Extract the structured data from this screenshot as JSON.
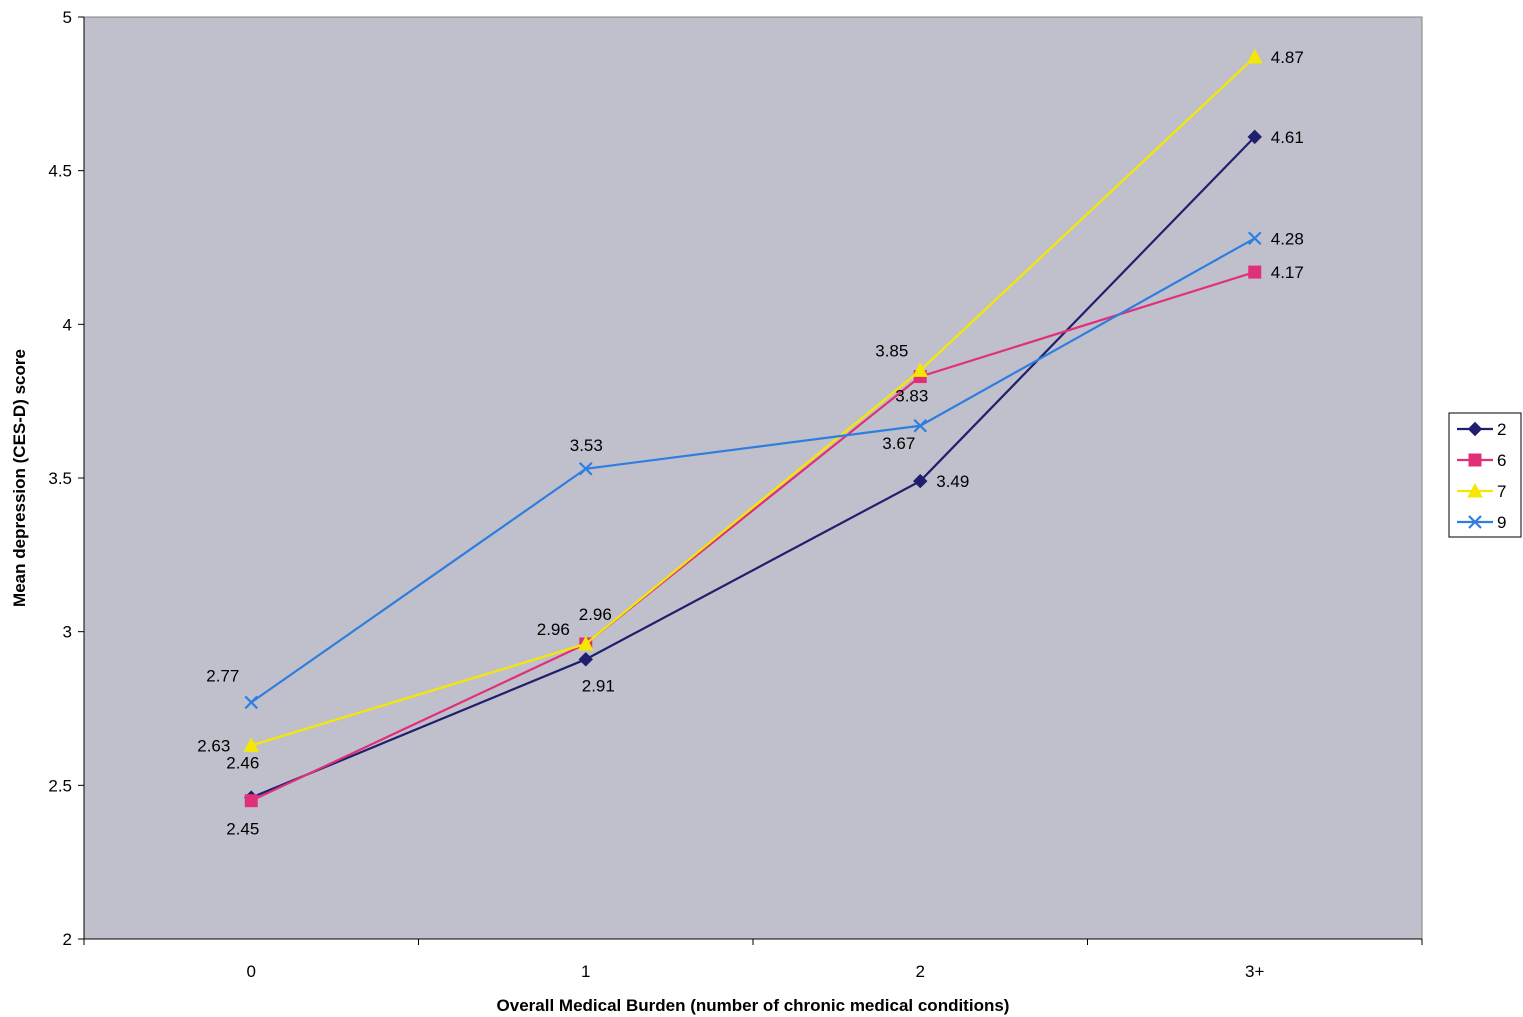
{
  "chart_data": {
    "type": "line",
    "categories": [
      "0",
      "1",
      "2",
      "3+"
    ],
    "title": "",
    "xlabel": "Overall Medical Burden (number of chronic medical conditions)",
    "ylabel": "Mean depression (CES-D) score",
    "ylim": [
      2,
      5
    ],
    "y_ticks": [
      "2",
      "2.5",
      "3",
      "3.5",
      "4",
      "4.5",
      "5"
    ],
    "grid": false,
    "plot_background": "#c0c0cc",
    "legend_position": "right",
    "series": [
      {
        "name": "2",
        "color": "#1f1f6e",
        "marker": "diamond",
        "values": [
          2.46,
          2.91,
          3.49,
          4.61
        ],
        "labels": [
          "2.46",
          "2.91",
          "3.49",
          "4.61"
        ]
      },
      {
        "name": "6",
        "color": "#e0307a",
        "marker": "square",
        "values": [
          2.45,
          2.96,
          3.83,
          4.17
        ],
        "labels": [
          "2.45",
          "2.96",
          "3.83",
          "4.17"
        ]
      },
      {
        "name": "7",
        "color": "#f5e800",
        "marker": "triangle",
        "values": [
          2.63,
          2.96,
          3.85,
          4.87
        ],
        "labels": [
          "2.63",
          "2.96",
          "3.85",
          "4.87"
        ]
      },
      {
        "name": "9",
        "color": "#2e7ee0",
        "marker": "x",
        "values": [
          2.77,
          3.53,
          3.67,
          4.28
        ],
        "labels": [
          "2.77",
          "3.53",
          "3.67",
          "4.28"
        ]
      }
    ]
  }
}
